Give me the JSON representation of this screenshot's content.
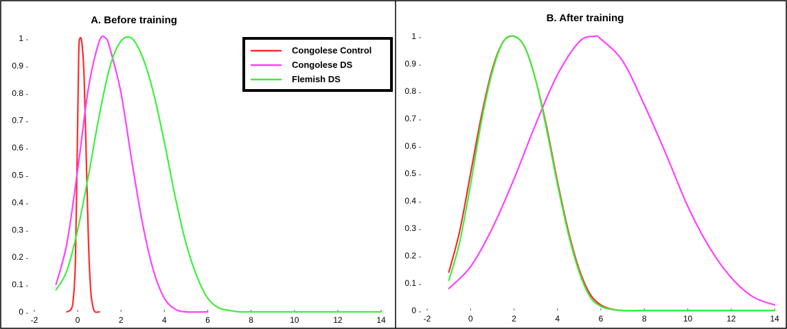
{
  "chart_data": [
    {
      "type": "line",
      "title": "A. Before training",
      "xlabel": "",
      "ylabel": "",
      "xlim": [
        -2,
        14
      ],
      "ylim": [
        0,
        1
      ],
      "x_ticks": [
        "-2",
        "0",
        "2",
        "4",
        "6",
        "8",
        "10",
        "12",
        "14"
      ],
      "y_ticks": [
        "0",
        "0.1",
        "0.2",
        "0.3",
        "0.4",
        "0.5",
        "0.6",
        "0.7",
        "0.8",
        "0.9",
        "1"
      ],
      "grid": false,
      "legend": {
        "placement": "top-center",
        "entries": [
          "Congolese Control",
          "Congolese DS",
          "Flemish DS"
        ]
      },
      "series": [
        {
          "name": "Congolese Control",
          "color": "#ff2a2a",
          "x": [
            -0.5,
            -0.3,
            -0.2,
            -0.1,
            0.0,
            0.05,
            0.1,
            0.2,
            0.3,
            0.4,
            0.5,
            0.6,
            0.7,
            0.8,
            1.0
          ],
          "y": [
            0.0,
            0.01,
            0.05,
            0.2,
            0.7,
            0.95,
            1.0,
            0.98,
            0.85,
            0.55,
            0.25,
            0.08,
            0.02,
            0.0,
            0.0
          ]
        },
        {
          "name": "Congolese DS",
          "color": "#ff40ff",
          "x": [
            -1,
            -0.5,
            0,
            0.5,
            1.0,
            1.3,
            1.5,
            2.0,
            2.5,
            3.0,
            3.5,
            4.0,
            4.5,
            5.0,
            6.0
          ],
          "y": [
            0.1,
            0.25,
            0.52,
            0.82,
            0.99,
            1.0,
            0.96,
            0.8,
            0.55,
            0.32,
            0.15,
            0.05,
            0.01,
            0.0,
            0.0
          ]
        },
        {
          "name": "Flemish DS",
          "color": "#3cf03c",
          "x": [
            -1,
            -0.5,
            0,
            0.5,
            1.0,
            1.5,
            2.0,
            2.5,
            3.0,
            3.5,
            4.0,
            4.5,
            5.0,
            5.5,
            6.0,
            6.5,
            7.0,
            7.5,
            8.0,
            10.0,
            12.0,
            14.0
          ],
          "y": [
            0.08,
            0.15,
            0.3,
            0.5,
            0.72,
            0.9,
            0.99,
            1.0,
            0.93,
            0.8,
            0.62,
            0.42,
            0.25,
            0.13,
            0.05,
            0.015,
            0.005,
            0.0,
            0.0,
            0.0,
            0.0,
            0.0
          ]
        }
      ]
    },
    {
      "type": "line",
      "title": "B. After training",
      "xlabel": "",
      "ylabel": "",
      "xlim": [
        -2,
        14
      ],
      "ylim": [
        0,
        1
      ],
      "x_ticks": [
        "-2",
        "0",
        "2",
        "4",
        "6",
        "8",
        "10",
        "12",
        "14"
      ],
      "y_ticks": [
        "0",
        "0.1",
        "0.2",
        "0.3",
        "0.4",
        "0.5",
        "0.6",
        "0.7",
        "0.8",
        "0.9",
        "1"
      ],
      "grid": false,
      "legend": null,
      "series": [
        {
          "name": "Congolese Control",
          "color": "#ff2a2a",
          "x": [
            -1,
            -0.5,
            0,
            0.5,
            1.0,
            1.5,
            2.0,
            2.5,
            3.0,
            3.5,
            4.0,
            4.5,
            5.0,
            5.5,
            6.0,
            6.5,
            7.0,
            8.0,
            10.0,
            12.0,
            14.0
          ],
          "y": [
            0.14,
            0.29,
            0.5,
            0.71,
            0.88,
            0.98,
            1.0,
            0.96,
            0.84,
            0.67,
            0.47,
            0.29,
            0.15,
            0.06,
            0.02,
            0.005,
            0.0,
            0.0,
            0.0,
            0.0,
            0.0
          ]
        },
        {
          "name": "Congolese DS",
          "color": "#ff40ff",
          "x": [
            -1,
            0,
            1,
            2,
            3,
            4,
            5,
            5.7,
            6,
            7,
            8,
            9,
            10,
            11,
            12,
            13,
            14
          ],
          "y": [
            0.08,
            0.16,
            0.3,
            0.48,
            0.68,
            0.86,
            0.98,
            1.0,
            0.99,
            0.91,
            0.75,
            0.57,
            0.38,
            0.23,
            0.12,
            0.05,
            0.02
          ]
        },
        {
          "name": "Flemish DS",
          "color": "#3cf03c",
          "x": [
            -1,
            -0.5,
            0,
            0.5,
            1.0,
            1.5,
            2.0,
            2.5,
            3.0,
            3.5,
            4.0,
            4.5,
            5.0,
            5.5,
            6.0,
            6.5,
            7.0,
            8.0,
            10.0,
            12.0,
            14.0
          ],
          "y": [
            0.11,
            0.25,
            0.46,
            0.69,
            0.87,
            0.98,
            1.0,
            0.96,
            0.84,
            0.66,
            0.46,
            0.28,
            0.14,
            0.05,
            0.015,
            0.004,
            0.0,
            0.0,
            0.0,
            0.0,
            0.0
          ]
        }
      ]
    }
  ]
}
